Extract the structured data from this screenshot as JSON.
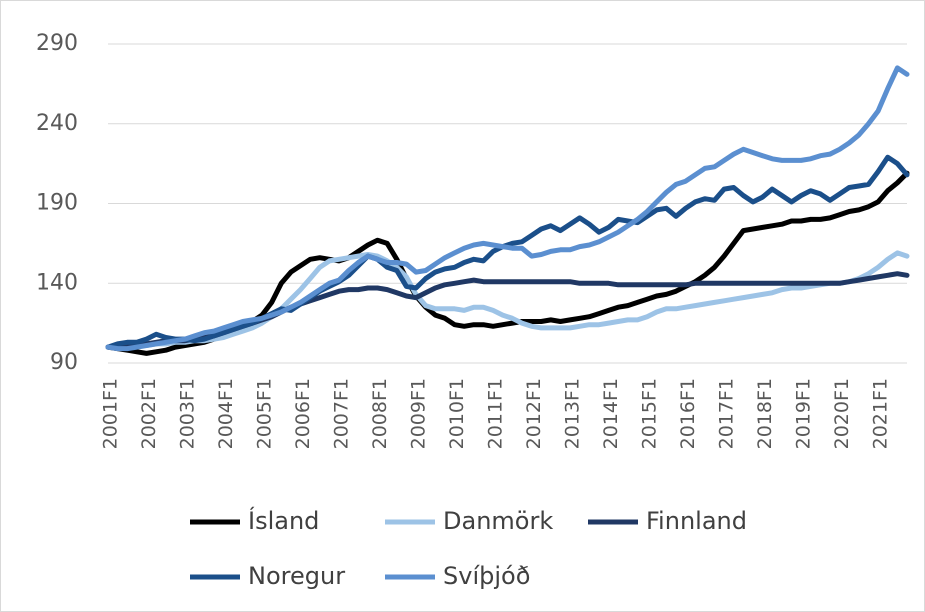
{
  "chart_data": {
    "type": "line",
    "categories": [
      "2001F1",
      null,
      null,
      null,
      "2002F1",
      null,
      null,
      null,
      "2003F1",
      null,
      null,
      null,
      "2004F1",
      null,
      null,
      null,
      "2005F1",
      null,
      null,
      null,
      "2006F1",
      null,
      null,
      null,
      "2007F1",
      null,
      null,
      null,
      "2008F1",
      null,
      null,
      null,
      "2009F1",
      null,
      null,
      null,
      "2010F1",
      null,
      null,
      null,
      "2011F1",
      null,
      null,
      null,
      "2012F1",
      null,
      null,
      null,
      "2013F1",
      null,
      null,
      null,
      "2014F1",
      null,
      null,
      null,
      "2015F1",
      null,
      null,
      null,
      "2016F1",
      null,
      null,
      null,
      "2017F1",
      null,
      null,
      null,
      "2018F1",
      null,
      null,
      null,
      "2019F1",
      null,
      null,
      null,
      "2020F1",
      null,
      null,
      null,
      "2021F1",
      null,
      null,
      null
    ],
    "series": [
      {
        "name": "Ísland",
        "color": "#000000",
        "values": [
          100,
          99,
          98,
          97,
          96,
          97,
          98,
          100,
          101,
          102,
          103,
          105,
          107,
          110,
          113,
          116,
          120,
          128,
          140,
          147,
          151,
          155,
          156,
          155,
          154,
          156,
          160,
          164,
          167,
          165,
          155,
          143,
          132,
          125,
          120,
          118,
          114,
          113,
          114,
          114,
          113,
          114,
          115,
          116,
          116,
          116,
          117,
          116,
          117,
          118,
          119,
          121,
          123,
          125,
          126,
          128,
          130,
          132,
          133,
          135,
          138,
          141,
          145,
          150,
          157,
          165,
          173,
          174,
          175,
          176,
          177,
          179,
          179,
          180,
          180,
          181,
          183,
          185,
          186,
          188,
          191,
          198,
          203,
          209
        ]
      },
      {
        "name": "Danmörk",
        "color": "#9dc3e6",
        "values": [
          100,
          100,
          101,
          101,
          101,
          102,
          102,
          103,
          103,
          104,
          104,
          105,
          106,
          108,
          110,
          112,
          115,
          119,
          124,
          130,
          136,
          143,
          150,
          154,
          155,
          156,
          157,
          158,
          157,
          154,
          150,
          144,
          133,
          126,
          124,
          124,
          124,
          123,
          125,
          125,
          123,
          120,
          118,
          115,
          113,
          112,
          112,
          112,
          112,
          113,
          114,
          114,
          115,
          116,
          117,
          117,
          119,
          122,
          124,
          124,
          125,
          126,
          127,
          128,
          129,
          130,
          131,
          132,
          133,
          134,
          136,
          137,
          137,
          138,
          139,
          140,
          140,
          141,
          143,
          146,
          150,
          155,
          159,
          157
        ]
      },
      {
        "name": "Finnland",
        "color": "#203864",
        "values": [
          100,
          101,
          101,
          102,
          102,
          103,
          104,
          104,
          104,
          105,
          106,
          107,
          109,
          111,
          113,
          115,
          117,
          119,
          122,
          125,
          127,
          129,
          131,
          133,
          135,
          136,
          136,
          137,
          137,
          136,
          134,
          132,
          131,
          134,
          137,
          139,
          140,
          141,
          142,
          141,
          141,
          141,
          141,
          141,
          141,
          141,
          141,
          141,
          141,
          140,
          140,
          140,
          140,
          139,
          139,
          139,
          139,
          139,
          139,
          139,
          139,
          140,
          140,
          140,
          140,
          140,
          140,
          140,
          140,
          140,
          140,
          140,
          140,
          140,
          140,
          140,
          140,
          141,
          142,
          143,
          144,
          145,
          146,
          145
        ]
      },
      {
        "name": "Noregur",
        "color": "#1b4f8a",
        "values": [
          100,
          102,
          103,
          103,
          105,
          108,
          106,
          105,
          105,
          104,
          105,
          107,
          109,
          111,
          113,
          115,
          118,
          121,
          124,
          123,
          127,
          131,
          135,
          138,
          141,
          145,
          151,
          157,
          155,
          150,
          148,
          138,
          137,
          143,
          147,
          149,
          150,
          153,
          155,
          154,
          160,
          163,
          165,
          166,
          170,
          174,
          176,
          173,
          177,
          181,
          177,
          172,
          175,
          180,
          179,
          178,
          182,
          186,
          187,
          182,
          187,
          191,
          193,
          192,
          199,
          200,
          195,
          191,
          194,
          199,
          195,
          191,
          195,
          198,
          196,
          192,
          196,
          200,
          201,
          202,
          210,
          219,
          215,
          208
        ]
      },
      {
        "name": "Svíþjóð",
        "color": "#5b8fd0",
        "values": [
          100,
          99,
          99,
          100,
          101,
          102,
          103,
          104,
          105,
          107,
          109,
          110,
          112,
          114,
          116,
          117,
          118,
          120,
          122,
          125,
          128,
          132,
          136,
          140,
          142,
          148,
          153,
          157,
          155,
          153,
          153,
          152,
          147,
          148,
          152,
          156,
          159,
          162,
          164,
          165,
          164,
          163,
          162,
          162,
          157,
          158,
          160,
          161,
          161,
          163,
          164,
          166,
          169,
          172,
          176,
          180,
          185,
          191,
          197,
          202,
          204,
          208,
          212,
          213,
          217,
          221,
          224,
          222,
          220,
          218,
          217,
          217,
          217,
          218,
          220,
          221,
          224,
          228,
          233,
          240,
          248,
          262,
          275,
          271
        ]
      }
    ],
    "ylim": [
      90,
      290
    ],
    "yticks": [
      90,
      140,
      190,
      240,
      290
    ],
    "grid": true
  }
}
